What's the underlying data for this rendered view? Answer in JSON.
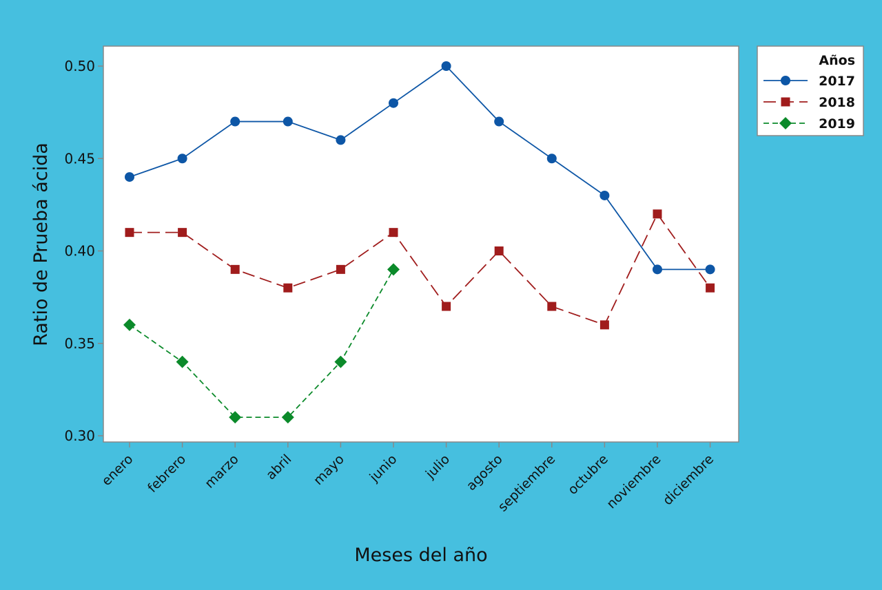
{
  "colors": {
    "background": "#46bfdf",
    "plot_area": "#ffffff",
    "axis": "#888888",
    "series_2017": "#0d56a6",
    "series_2018": "#a01c1c",
    "series_2019": "#0b8a2a"
  },
  "chart_data": {
    "type": "line",
    "title": "",
    "xlabel": "Meses del año",
    "ylabel": "Ratio de Prueba ácida",
    "categories": [
      "enero",
      "febrero",
      "marzo",
      "abril",
      "mayo",
      "junio",
      "julio",
      "agosto",
      "septiembre",
      "octubre",
      "noviembre",
      "diciembre"
    ],
    "ylim": [
      0.3,
      0.5
    ],
    "yticks": [
      "0.30",
      "0.35",
      "0.40",
      "0.45",
      "0.50"
    ],
    "legend": {
      "title": "Años",
      "placement": "right"
    },
    "grid": false,
    "series": [
      {
        "name": "2017",
        "marker": "circle",
        "line": "solid",
        "values": [
          0.44,
          0.45,
          0.47,
          0.47,
          0.46,
          0.48,
          0.5,
          0.47,
          0.45,
          0.43,
          0.39,
          0.39
        ]
      },
      {
        "name": "2018",
        "marker": "square",
        "line": "long-dash",
        "values": [
          0.41,
          0.41,
          0.39,
          0.38,
          0.39,
          0.41,
          0.37,
          0.4,
          0.37,
          0.36,
          0.42,
          0.38
        ]
      },
      {
        "name": "2019",
        "marker": "diamond",
        "line": "short-dash",
        "values": [
          0.36,
          0.34,
          0.31,
          0.31,
          0.34,
          0.39,
          null,
          null,
          null,
          null,
          null,
          null
        ]
      }
    ]
  }
}
